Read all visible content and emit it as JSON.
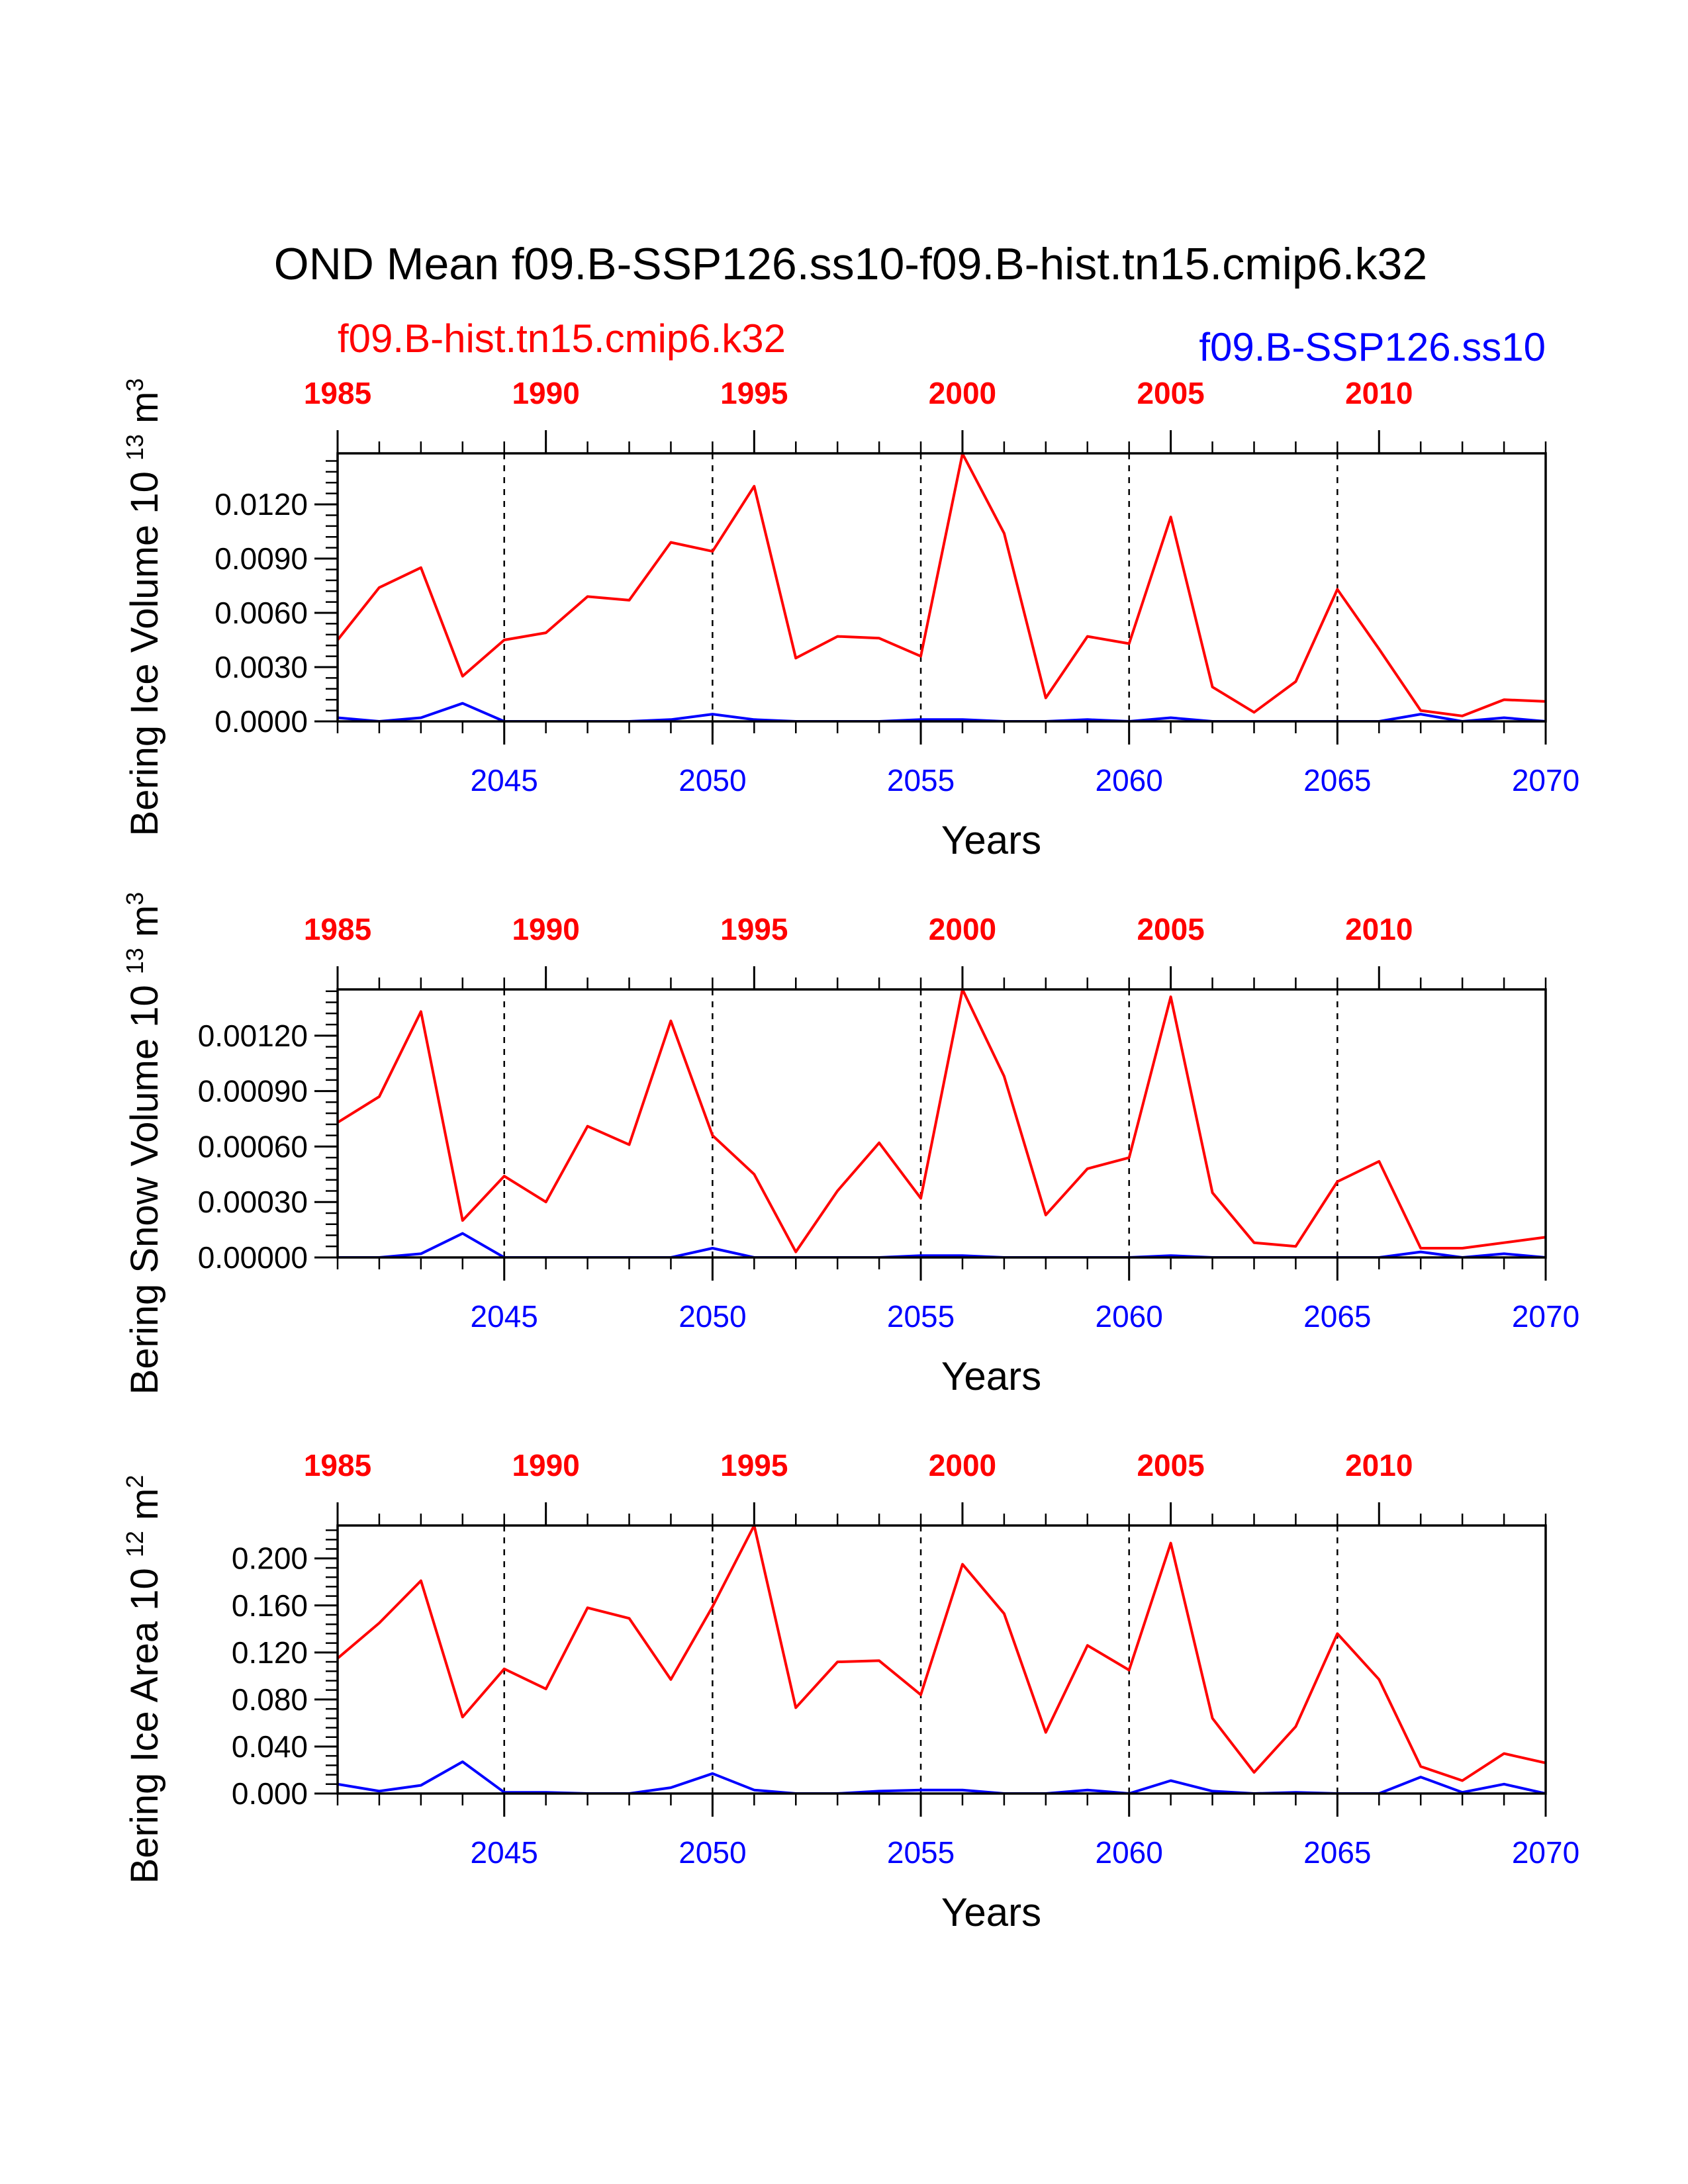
{
  "title": "OND Mean f09.B-SSP126.ss10-f09.B-hist.tn15.cmip6.k32",
  "legend": {
    "hist_label": "f09.B-hist.tn15.cmip6.k32",
    "ssp_label": "f09.B-SSP126.ss10"
  },
  "colors": {
    "hist": "#ff0000",
    "ssp": "#0000ff",
    "axis": "#000000"
  },
  "chart_data": [
    {
      "type": "line",
      "ylabel": "Bering Ice Volume 10",
      "ylabel_exp": "13",
      "ylabel_unit": "m",
      "ylabel_unit_exp": "3",
      "xlabel": "Years",
      "ylim": [
        0.0,
        0.01482
      ],
      "yticks": [
        0.0,
        0.003,
        0.006,
        0.009,
        0.012
      ],
      "ytick_labels": [
        "0.0000",
        "0.0030",
        "0.0060",
        "0.0090",
        "0.0120"
      ],
      "bottom_axis": {
        "range": [
          2041,
          2070
        ],
        "ticks": [
          2045,
          2050,
          2055,
          2060,
          2065,
          2070
        ],
        "labels": [
          "2045",
          "2050",
          "2055",
          "2060",
          "2065",
          "2070"
        ]
      },
      "top_axis": {
        "range": [
          1985,
          2014
        ],
        "ticks": [
          1985,
          1990,
          1995,
          2000,
          2005,
          2010
        ],
        "labels": [
          "1985",
          "1990",
          "1995",
          "2000",
          "2005",
          "2010"
        ]
      },
      "vlines": [
        2045,
        2050,
        2055,
        2060,
        2065
      ],
      "series": [
        {
          "name": "f09.B-hist.tn15.cmip6.k32",
          "color": "#ff0000",
          "x": [
            1985,
            1986,
            1987,
            1988,
            1989,
            1990,
            1991,
            1992,
            1993,
            1994,
            1995,
            1996,
            1997,
            1998,
            1999,
            2000,
            2001,
            2002,
            2003,
            2004,
            2005,
            2006,
            2007,
            2008,
            2009,
            2010,
            2011,
            2012,
            2013,
            2014
          ],
          "values": [
            0.0045,
            0.0074,
            0.0085,
            0.0025,
            0.0045,
            0.0049,
            0.0069,
            0.0067,
            0.0099,
            0.0094,
            0.013,
            0.0035,
            0.0047,
            0.0046,
            0.0036,
            0.0148,
            0.0104,
            0.0013,
            0.0047,
            0.0043,
            0.0113,
            0.0019,
            0.0005,
            0.0022,
            0.0073,
            0.004,
            0.0006,
            0.0003,
            0.0012,
            0.0011
          ]
        },
        {
          "name": "f09.B-SSP126.ss10",
          "color": "#0000ff",
          "x": [
            2041,
            2042,
            2043,
            2044,
            2045,
            2046,
            2047,
            2048,
            2049,
            2050,
            2051,
            2052,
            2053,
            2054,
            2055,
            2056,
            2057,
            2058,
            2059,
            2060,
            2061,
            2062,
            2063,
            2064,
            2065,
            2066,
            2067,
            2068,
            2069,
            2070
          ],
          "values": [
            0.0002,
            0.0,
            0.0002,
            0.001,
            0.0,
            0.0,
            0.0,
            0.0,
            0.0001,
            0.0004,
            0.0001,
            0.0,
            0.0,
            0.0,
            0.0001,
            0.0001,
            0.0,
            0.0,
            0.0001,
            0.0,
            0.0002,
            0.0,
            0.0,
            0.0,
            0.0,
            0.0,
            0.0004,
            0.0,
            0.0002,
            0.0
          ]
        }
      ]
    },
    {
      "type": "line",
      "ylabel": "Bering Snow Volume 10",
      "ylabel_exp": "13",
      "ylabel_unit": "m",
      "ylabel_unit_exp": "3",
      "xlabel": "Years",
      "ylim": [
        0.0,
        0.00145
      ],
      "yticks": [
        0.0,
        0.0003,
        0.0006,
        0.0009,
        0.0012
      ],
      "ytick_labels": [
        "0.00000",
        "0.00030",
        "0.00060",
        "0.00090",
        "0.00120"
      ],
      "bottom_axis": {
        "range": [
          2041,
          2070
        ],
        "ticks": [
          2045,
          2050,
          2055,
          2060,
          2065,
          2070
        ],
        "labels": [
          "2045",
          "2050",
          "2055",
          "2060",
          "2065",
          "2070"
        ]
      },
      "top_axis": {
        "range": [
          1985,
          2014
        ],
        "ticks": [
          1985,
          1990,
          1995,
          2000,
          2005,
          2010
        ],
        "labels": [
          "1985",
          "1990",
          "1995",
          "2000",
          "2005",
          "2010"
        ]
      },
      "vlines": [
        2045,
        2050,
        2055,
        2060,
        2065
      ],
      "series": [
        {
          "name": "f09.B-hist.tn15.cmip6.k32",
          "color": "#ff0000",
          "x": [
            1985,
            1986,
            1987,
            1988,
            1989,
            1990,
            1991,
            1992,
            1993,
            1994,
            1995,
            1996,
            1997,
            1998,
            1999,
            2000,
            2001,
            2002,
            2003,
            2004,
            2005,
            2006,
            2007,
            2008,
            2009,
            2010,
            2011,
            2012,
            2013,
            2014
          ],
          "values": [
            0.00073,
            0.00087,
            0.00133,
            0.0002,
            0.00044,
            0.0003,
            0.00071,
            0.00061,
            0.00128,
            0.00066,
            0.00045,
            3e-05,
            0.00036,
            0.00062,
            0.00032,
            0.00145,
            0.00098,
            0.00023,
            0.00048,
            0.00054,
            0.00141,
            0.00035,
            8e-05,
            6e-05,
            0.00041,
            0.00052,
            5e-05,
            5e-05,
            8e-05,
            0.00011
          ]
        },
        {
          "name": "f09.B-SSP126.ss10",
          "color": "#0000ff",
          "x": [
            2041,
            2042,
            2043,
            2044,
            2045,
            2046,
            2047,
            2048,
            2049,
            2050,
            2051,
            2052,
            2053,
            2054,
            2055,
            2056,
            2057,
            2058,
            2059,
            2060,
            2061,
            2062,
            2063,
            2064,
            2065,
            2066,
            2067,
            2068,
            2069,
            2070
          ],
          "values": [
            0.0,
            0.0,
            2e-05,
            0.00013,
            0.0,
            0.0,
            0.0,
            0.0,
            0.0,
            5e-05,
            0.0,
            0.0,
            0.0,
            0.0,
            1e-05,
            1e-05,
            0.0,
            0.0,
            0.0,
            0.0,
            1e-05,
            0.0,
            0.0,
            0.0,
            0.0,
            0.0,
            3e-05,
            0.0,
            2e-05,
            0.0
          ]
        }
      ]
    },
    {
      "type": "line",
      "ylabel": "Bering Ice Area 10",
      "ylabel_exp": "12",
      "ylabel_unit": "m",
      "ylabel_unit_exp": "2",
      "xlabel": "Years",
      "ylim": [
        0.0,
        0.228
      ],
      "yticks": [
        0.0,
        0.04,
        0.08,
        0.12,
        0.16,
        0.2
      ],
      "ytick_labels": [
        "0.000",
        "0.040",
        "0.080",
        "0.120",
        "0.160",
        "0.200"
      ],
      "bottom_axis": {
        "range": [
          2041,
          2070
        ],
        "ticks": [
          2045,
          2050,
          2055,
          2060,
          2065,
          2070
        ],
        "labels": [
          "2045",
          "2050",
          "2055",
          "2060",
          "2065",
          "2070"
        ]
      },
      "top_axis": {
        "range": [
          1985,
          2014
        ],
        "ticks": [
          1985,
          1990,
          1995,
          2000,
          2005,
          2010
        ],
        "labels": [
          "1985",
          "1990",
          "1995",
          "2000",
          "2005",
          "2010"
        ]
      },
      "vlines": [
        2045,
        2050,
        2055,
        2060,
        2065
      ],
      "series": [
        {
          "name": "f09.B-hist.tn15.cmip6.k32",
          "color": "#ff0000",
          "x": [
            1985,
            1986,
            1987,
            1988,
            1989,
            1990,
            1991,
            1992,
            1993,
            1994,
            1995,
            1996,
            1997,
            1998,
            1999,
            2000,
            2001,
            2002,
            2003,
            2004,
            2005,
            2006,
            2007,
            2008,
            2009,
            2010,
            2011,
            2012,
            2013,
            2014
          ],
          "values": [
            0.115,
            0.145,
            0.181,
            0.065,
            0.106,
            0.089,
            0.158,
            0.149,
            0.097,
            0.159,
            0.228,
            0.073,
            0.112,
            0.113,
            0.084,
            0.195,
            0.153,
            0.052,
            0.126,
            0.105,
            0.213,
            0.064,
            0.018,
            0.057,
            0.136,
            0.097,
            0.023,
            0.011,
            0.034,
            0.026
          ]
        },
        {
          "name": "f09.B-SSP126.ss10",
          "color": "#0000ff",
          "x": [
            2041,
            2042,
            2043,
            2044,
            2045,
            2046,
            2047,
            2048,
            2049,
            2050,
            2051,
            2052,
            2053,
            2054,
            2055,
            2056,
            2057,
            2058,
            2059,
            2060,
            2061,
            2062,
            2063,
            2064,
            2065,
            2066,
            2067,
            2068,
            2069,
            2070
          ],
          "values": [
            0.008,
            0.002,
            0.007,
            0.027,
            0.001,
            0.001,
            0.0,
            0.0,
            0.005,
            0.017,
            0.003,
            0.0,
            0.0,
            0.002,
            0.003,
            0.003,
            0.0,
            0.0,
            0.003,
            0.0,
            0.011,
            0.002,
            0.0,
            0.001,
            0.0,
            0.0,
            0.014,
            0.001,
            0.008,
            0.0
          ]
        }
      ]
    }
  ]
}
